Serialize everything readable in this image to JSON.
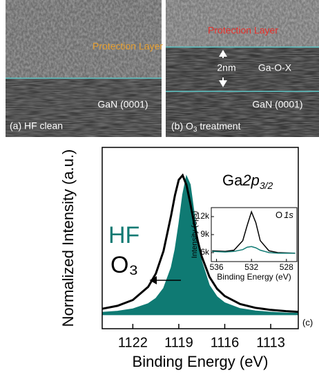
{
  "panels": [
    {
      "layer_label": "Protection Layer",
      "substrate_label": "GaN (0001)",
      "caption": "(a) HF clean"
    },
    {
      "layer_label": "Protection Layer",
      "thickness_label": "2nm",
      "interface_label": "Ga-O-X",
      "substrate_label": "GaN (0001)",
      "caption": [
        "(b) O",
        "3",
        " treatment"
      ]
    }
  ],
  "chart_data": {
    "type": "line",
    "panel_label": "(c)",
    "peak_label": [
      "Ga",
      "2p",
      "3/2"
    ],
    "x_label": "Binding Energy (eV)",
    "y_label": "Normalized Intensity (a.u.)",
    "x": [
      1124,
      1123,
      1122,
      1121,
      1120.5,
      1120,
      1119.5,
      1119.25,
      1119,
      1118.75,
      1118.5,
      1118.25,
      1118,
      1117.75,
      1117.5,
      1117,
      1116.5,
      1116,
      1115,
      1114,
      1113,
      1112,
      1111.2
    ],
    "series": [
      {
        "name": "HF",
        "color": "#0f7a73",
        "fill": true,
        "values": [
          0.018,
          0.026,
          0.043,
          0.08,
          0.118,
          0.19,
          0.338,
          0.468,
          0.65,
          0.862,
          0.996,
          0.934,
          0.735,
          0.534,
          0.384,
          0.211,
          0.129,
          0.086,
          0.045,
          0.028,
          0.019,
          0.013,
          0.011
        ]
      },
      {
        "name": "O₃",
        "color": "#000000",
        "fill": false,
        "values": [
          0.043,
          0.064,
          0.106,
          0.2,
          0.295,
          0.457,
          0.712,
          0.857,
          0.968,
          1.0,
          0.931,
          0.8,
          0.654,
          0.523,
          0.417,
          0.272,
          0.186,
          0.134,
          0.077,
          0.05,
          0.035,
          0.026,
          0.021
        ]
      }
    ],
    "xlim": [
      1124,
      1111.2
    ],
    "ylim": [
      -0.1,
      1.2
    ],
    "xticks": [
      1122,
      1119,
      1116,
      1113
    ],
    "inset": {
      "title": [
        "O",
        "1s"
      ],
      "x_label": "Binding Energy (eV)",
      "y_label": "Intensity (cps)",
      "x": [
        536.5,
        535,
        534,
        533,
        532.5,
        532,
        531.5,
        531,
        530,
        529,
        527
      ],
      "series": [
        {
          "color": "#000000",
          "values": [
            6300,
            6200,
            6400,
            8000,
            10500,
            12800,
            11000,
            8000,
            6300,
            6000,
            5900
          ]
        },
        {
          "color": "#0f7a73",
          "values": [
            6200,
            6100,
            6200,
            6500,
            6900,
            7000,
            6800,
            6400,
            6000,
            5900,
            5900
          ]
        }
      ],
      "xlim": [
        536.6,
        526.8
      ],
      "ylim": [
        4500,
        13500
      ],
      "xticks": [
        536,
        532,
        528
      ],
      "yticks": [
        {
          "value": 6000,
          "label": "6k"
        },
        {
          "value": 9000,
          "label": "9k"
        },
        {
          "value": 12000,
          "label": "12k"
        }
      ]
    }
  }
}
